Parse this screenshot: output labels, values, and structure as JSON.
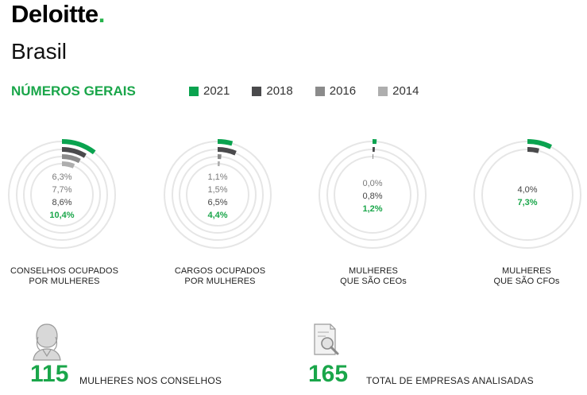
{
  "brand": {
    "name": "Deloitte",
    "dot": "."
  },
  "country": "Brasil",
  "section_title": "NÚMEROS GERAIS",
  "colors": {
    "accent": "#1aa64a",
    "ring_track": "#e6e6e6",
    "series": [
      "#0aa34f",
      "#4a4a4c",
      "#8b8b8b",
      "#aeaeae"
    ]
  },
  "legend": [
    {
      "label": "2021",
      "color": "#0aa34f"
    },
    {
      "label": "2018",
      "color": "#4a4a4c"
    },
    {
      "label": "2016",
      "color": "#8b8b8b"
    },
    {
      "label": "2014",
      "color": "#aeaeae"
    }
  ],
  "chart_data": [
    {
      "type": "radial-bar",
      "caption": [
        "CONSELHOS OCUPADOS",
        "POR MULHERES"
      ],
      "series": [
        {
          "name": "2021",
          "value": 10.4,
          "label": "10,4%"
        },
        {
          "name": "2018",
          "value": 8.6,
          "label": "8,6%"
        },
        {
          "name": "2016",
          "value": 7.7,
          "label": "7,7%"
        },
        {
          "name": "2014",
          "value": 6.3,
          "label": "6,3%"
        }
      ]
    },
    {
      "type": "radial-bar",
      "caption": [
        "CARGOS OCUPADOS",
        "POR MULHERES"
      ],
      "series": [
        {
          "name": "2021",
          "value": 4.4,
          "label": "4,4%"
        },
        {
          "name": "2018",
          "value": 6.5,
          "label": "6,5%"
        },
        {
          "name": "2016",
          "value": 1.5,
          "label": "1,5%"
        },
        {
          "name": "2014",
          "value": 1.1,
          "label": "1,1%"
        }
      ]
    },
    {
      "type": "radial-bar",
      "caption": [
        "MULHERES",
        "QUE SÃO CEOs"
      ],
      "series": [
        {
          "name": "2021",
          "value": 1.2,
          "label": "1,2%"
        },
        {
          "name": "2018",
          "value": 0.8,
          "label": "0,8%"
        },
        {
          "name": "2016",
          "value": 0.0,
          "label": "0,0%"
        }
      ]
    },
    {
      "type": "radial-bar",
      "caption": [
        "MULHERES",
        "QUE SÃO CFOs"
      ],
      "series": [
        {
          "name": "2021",
          "value": 7.3,
          "label": "7,3%"
        },
        {
          "name": "2018",
          "value": 4.0,
          "label": "4,0%"
        }
      ]
    }
  ],
  "stats": [
    {
      "number": "115",
      "label": "MULHERES NOS CONSELHOS",
      "icon": "woman-avatar-icon"
    },
    {
      "number": "165",
      "label": "TOTAL DE EMPRESAS ANALISADAS",
      "icon": "document-magnifier-icon"
    }
  ]
}
